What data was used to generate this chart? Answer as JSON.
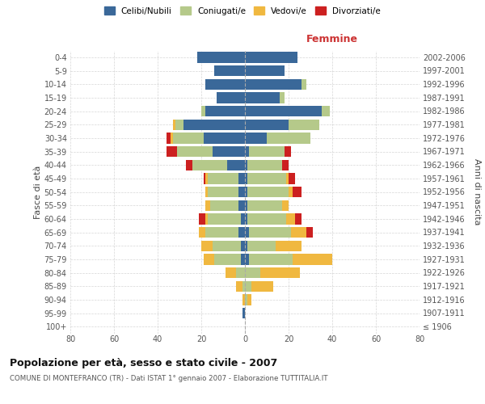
{
  "age_groups": [
    "100+",
    "95-99",
    "90-94",
    "85-89",
    "80-84",
    "75-79",
    "70-74",
    "65-69",
    "60-64",
    "55-59",
    "50-54",
    "45-49",
    "40-44",
    "35-39",
    "30-34",
    "25-29",
    "20-24",
    "15-19",
    "10-14",
    "5-9",
    "0-4"
  ],
  "birth_years": [
    "≤ 1906",
    "1907-1911",
    "1912-1916",
    "1917-1921",
    "1922-1926",
    "1927-1931",
    "1932-1936",
    "1937-1941",
    "1942-1946",
    "1947-1951",
    "1952-1956",
    "1957-1961",
    "1962-1966",
    "1967-1971",
    "1972-1976",
    "1977-1981",
    "1982-1986",
    "1987-1991",
    "1992-1996",
    "1997-2001",
    "2002-2006"
  ],
  "males": {
    "celibi": [
      0,
      1,
      0,
      0,
      0,
      2,
      2,
      3,
      2,
      3,
      3,
      3,
      8,
      15,
      19,
      28,
      18,
      13,
      18,
      14,
      22
    ],
    "coniugati": [
      0,
      0,
      0,
      1,
      4,
      12,
      13,
      15,
      15,
      13,
      14,
      14,
      16,
      16,
      14,
      4,
      2,
      0,
      0,
      0,
      0
    ],
    "vedovi": [
      0,
      0,
      1,
      3,
      5,
      5,
      5,
      3,
      1,
      2,
      1,
      1,
      0,
      0,
      1,
      1,
      0,
      0,
      0,
      0,
      0
    ],
    "divorziati": [
      0,
      0,
      0,
      0,
      0,
      0,
      0,
      0,
      3,
      0,
      0,
      1,
      3,
      5,
      2,
      0,
      0,
      0,
      0,
      0,
      0
    ]
  },
  "females": {
    "nubili": [
      0,
      0,
      0,
      0,
      0,
      2,
      1,
      2,
      1,
      1,
      1,
      1,
      1,
      2,
      10,
      20,
      35,
      16,
      26,
      18,
      24
    ],
    "coniugate": [
      0,
      0,
      1,
      3,
      7,
      20,
      13,
      19,
      18,
      16,
      19,
      18,
      16,
      16,
      20,
      14,
      4,
      2,
      2,
      0,
      0
    ],
    "vedove": [
      0,
      0,
      2,
      10,
      18,
      18,
      12,
      7,
      4,
      3,
      2,
      1,
      0,
      0,
      0,
      0,
      0,
      0,
      0,
      0,
      0
    ],
    "divorziate": [
      0,
      0,
      0,
      0,
      0,
      0,
      0,
      3,
      3,
      0,
      4,
      3,
      3,
      3,
      0,
      0,
      0,
      0,
      0,
      0,
      0
    ]
  },
  "colors": {
    "celibi": "#3a6899",
    "coniugati": "#b5c98a",
    "vedovi": "#f0b840",
    "divorziati": "#cc2020"
  },
  "title": "Popolazione per età, sesso e stato civile - 2007",
  "subtitle": "COMUNE DI MONTEFRANCO (TR) - Dati ISTAT 1° gennaio 2007 - Elaborazione TUTTITALIA.IT",
  "ylabel_left": "Fasce di età",
  "ylabel_right": "Anni di nascita",
  "xlabel_right": "Femmine",
  "xlim": 80,
  "bg_color": "#ffffff",
  "grid_color": "#cccccc"
}
